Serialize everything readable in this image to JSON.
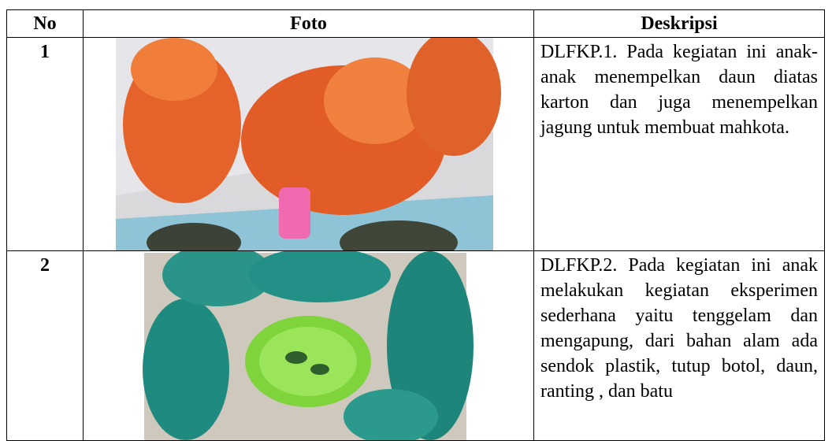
{
  "table": {
    "header": [
      "No",
      "Foto",
      "Deskripsi"
    ],
    "rows": [
      [
        "1",
        "DLFKP.1. Pada kegiatan ini anak-anak menempelkan daun diatas karton dan juga menempelkan jagung untuk membuat mahkota."
      ],
      [
        "2",
        "DLFKP.2. Pada kegiatan ini anak melakukan kegiatan eksperimen sederhana yaitu tenggelam dan mengapung, dari bahan alam ada sendok plastik, tutup botol, daun, ranting , dan batu"
      ]
    ]
  }
}
